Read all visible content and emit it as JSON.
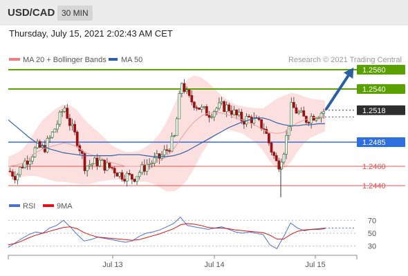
{
  "header": {
    "pair": "USD/CAD",
    "timeframe": "30 MIN"
  },
  "datetime": "Thursday, July 15, 2021 2:02:43 AM CET",
  "copyright": "Research © 2021 Trading Central",
  "colors": {
    "bollinger": "#f08080",
    "ma50": "#2f5fa8",
    "green": "#5aa000",
    "blue": "#2e6fe0",
    "red": "#e05050",
    "arrow": "#2b5fa5",
    "candle_up": "#2a7a3a",
    "candle_down": "#a01010"
  },
  "chart_data": [
    {
      "type": "line",
      "title": "",
      "legend": [
        {
          "name": "MA 20 + Bollinger Bands",
          "color": "#f08080"
        },
        {
          "name": "MA 50",
          "color": "#2f5fa8"
        }
      ],
      "x_ticks": [
        "Jul 13",
        "Jul 14",
        "Jul 15"
      ],
      "ylim": [
        1.2425,
        1.2575
      ],
      "levels": [
        {
          "value": 1.256,
          "label": "1.2560",
          "kind": "resistance"
        },
        {
          "value": 1.254,
          "label": "1.2540",
          "kind": "resistance"
        },
        {
          "value": 1.2518,
          "label": "1.2518",
          "kind": "last"
        },
        {
          "value": 1.2485,
          "label": "1.2485",
          "kind": "pivot"
        },
        {
          "value": 1.246,
          "label": "1.2460",
          "kind": "support"
        },
        {
          "value": 1.244,
          "label": "1.2440",
          "kind": "support"
        }
      ],
      "arrow": {
        "from": 1.2518,
        "to": 1.256
      },
      "price_path": [
        1.2455,
        1.245,
        1.2463,
        1.247,
        1.248,
        1.2478,
        1.249,
        1.2505,
        1.2522,
        1.25,
        1.2485,
        1.246,
        1.2463,
        1.2465,
        1.246,
        1.2458,
        1.2452,
        1.245,
        1.2448,
        1.2455,
        1.2462,
        1.2465,
        1.247,
        1.2478,
        1.249,
        1.2548,
        1.253,
        1.2525,
        1.2518,
        1.2515,
        1.252,
        1.2522,
        1.252,
        1.2512,
        1.2508,
        1.251,
        1.2505,
        1.25,
        1.2478,
        1.246,
        1.248,
        1.2522,
        1.2515,
        1.2508,
        1.2512,
        1.2515,
        1.2518
      ],
      "ma20": [
        1.246,
        1.2461,
        1.2463,
        1.2468,
        1.2474,
        1.2478,
        1.248,
        1.2482,
        1.2484,
        1.2483,
        1.248,
        1.2475,
        1.2472,
        1.247,
        1.2467,
        1.2464,
        1.2462,
        1.246,
        1.246,
        1.246,
        1.2462,
        1.2464,
        1.2466,
        1.247,
        1.2478,
        1.2488,
        1.2498,
        1.2506,
        1.2512,
        1.2515,
        1.2516,
        1.2515,
        1.2513,
        1.251,
        1.2508,
        1.2505,
        1.2502,
        1.2498,
        1.2495,
        1.2494,
        1.2495,
        1.25,
        1.2505,
        1.2508,
        1.251,
        1.2511,
        1.2512
      ],
      "bb_width": [
        0.001,
        0.0012,
        0.0014,
        0.0018,
        0.0024,
        0.003,
        0.0034,
        0.0038,
        0.004,
        0.004,
        0.0038,
        0.0034,
        0.003,
        0.0026,
        0.0022,
        0.0018,
        0.0016,
        0.0015,
        0.0015,
        0.0016,
        0.0018,
        0.0022,
        0.0028,
        0.0036,
        0.0044,
        0.005,
        0.0052,
        0.0048,
        0.004,
        0.0032,
        0.0024,
        0.0018,
        0.0015,
        0.0014,
        0.0014,
        0.0016,
        0.0018,
        0.0022,
        0.003,
        0.0036,
        0.0038,
        0.0036,
        0.003,
        0.0024,
        0.002,
        0.0018,
        0.0016
      ],
      "ma50": [
        1.2508,
        1.2502,
        1.2496,
        1.249,
        1.2485,
        1.2481,
        1.2478,
        1.2476,
        1.2474,
        1.2473,
        1.2472,
        1.2471,
        1.2471,
        1.2471,
        1.2471,
        1.2471,
        1.2472,
        1.2472,
        1.2472,
        1.2472,
        1.2471,
        1.247,
        1.247,
        1.247,
        1.2471,
        1.2473,
        1.2476,
        1.248,
        1.2484,
        1.2488,
        1.2492,
        1.2496,
        1.25,
        1.2503,
        1.2506,
        1.2508,
        1.251,
        1.251,
        1.2508,
        1.2505,
        1.2503,
        1.2502,
        1.2502,
        1.2503,
        1.2503,
        1.2504,
        1.2504
      ]
    },
    {
      "type": "line",
      "legend": [
        {
          "name": "RSI",
          "color": "#4a70d0"
        },
        {
          "name": "9MA",
          "color": "#e01010"
        }
      ],
      "y_ticks": [
        70,
        50,
        30
      ],
      "ylim": [
        20,
        80
      ],
      "rsi": [
        28,
        35,
        42,
        48,
        52,
        50,
        58,
        62,
        70,
        60,
        48,
        38,
        40,
        44,
        42,
        40,
        38,
        36,
        38,
        45,
        50,
        52,
        55,
        60,
        65,
        75,
        62,
        60,
        58,
        56,
        58,
        60,
        56,
        52,
        50,
        52,
        50,
        48,
        32,
        26,
        45,
        66,
        58,
        54,
        56,
        57,
        58
      ],
      "rsi_ma": [
        32,
        34,
        38,
        43,
        47,
        50,
        53,
        56,
        59,
        60,
        57,
        51,
        47,
        44,
        43,
        42,
        41,
        40,
        39,
        40,
        43,
        46,
        49,
        53,
        57,
        63,
        65,
        64,
        62,
        59,
        58,
        58,
        57,
        55,
        54,
        53,
        52,
        51,
        47,
        41,
        41,
        48,
        53,
        55,
        56,
        56,
        57
      ]
    }
  ]
}
